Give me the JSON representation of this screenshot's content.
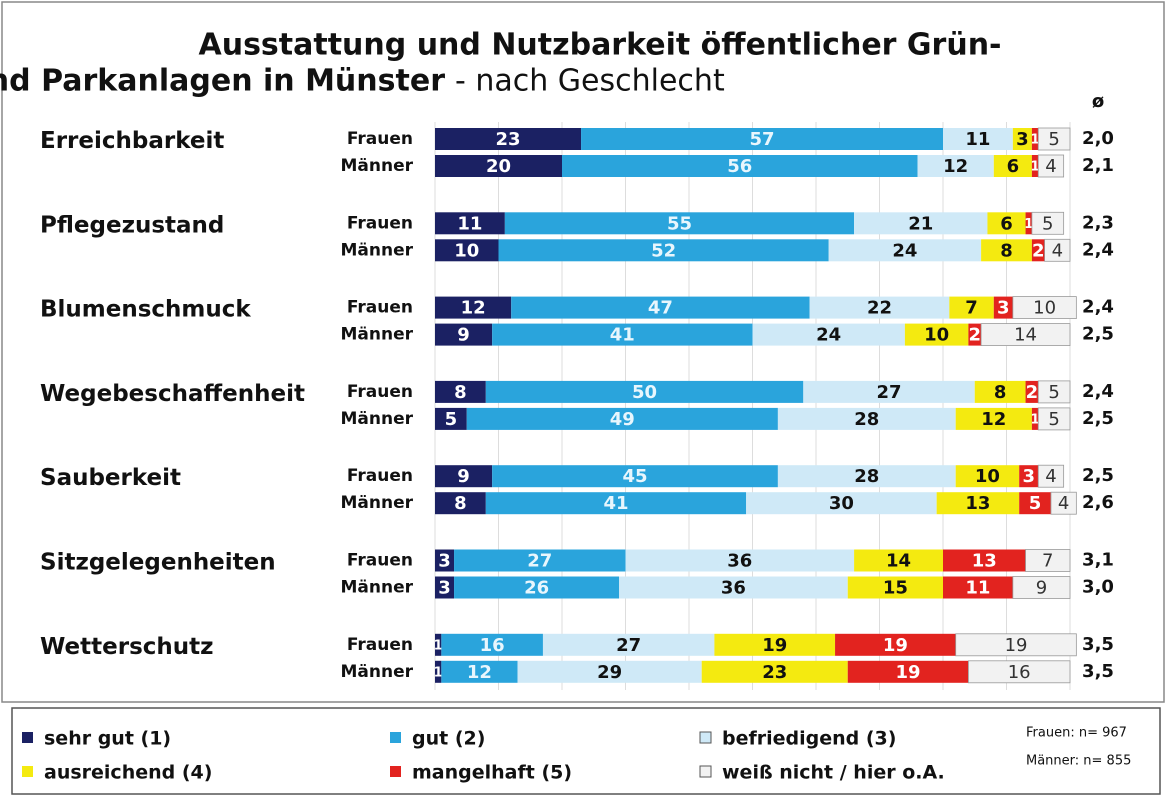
{
  "chart_data": {
    "type": "stacked_bar_horizontal",
    "title": [
      "Ausstattung und Nutzbarkeit öffentlicher Grün-",
      "und Parkanlagen in Münster"
    ],
    "subtitle": "- nach Geschlecht",
    "groups": [
      "Erreichbarkeit",
      "Pflegezustand",
      "Blumenschmuck",
      "Wegebeschaffenheit",
      "Sauberkeit",
      "Sitzgelegenheiten",
      "Wetterschutz"
    ],
    "categories": [
      "Frauen",
      "Männer",
      "Frauen",
      "Männer",
      "Frauen",
      "Männer",
      "Frauen",
      "Männer",
      "Frauen",
      "Männer",
      "Frauen",
      "Männer",
      "Frauen",
      "Männer"
    ],
    "average_header": "ø",
    "averages": [
      "2,0",
      "2,1",
      "2,3",
      "2,4",
      "2,4",
      "2,5",
      "2,4",
      "2,5",
      "2,5",
      "2,6",
      "3,1",
      "3,0",
      "3,5",
      "3,5"
    ],
    "series": [
      {
        "name": "sehr gut (1)",
        "color": "#1b2163",
        "values": [
          23,
          20,
          11,
          10,
          12,
          9,
          8,
          5,
          9,
          8,
          3,
          3,
          1,
          1
        ]
      },
      {
        "name": "gut (2)",
        "color": "#2aa4dc",
        "values": [
          57,
          56,
          55,
          52,
          47,
          41,
          50,
          49,
          45,
          41,
          27,
          26,
          16,
          12
        ]
      },
      {
        "name": "befriedigend (3)",
        "color": "#cfe9f7",
        "values": [
          11,
          12,
          21,
          24,
          22,
          24,
          27,
          28,
          28,
          30,
          36,
          36,
          27,
          29
        ]
      },
      {
        "name": "ausreichend (4)",
        "color": "#f4ea10",
        "values": [
          3,
          6,
          6,
          8,
          7,
          10,
          8,
          12,
          10,
          13,
          14,
          15,
          19,
          23
        ]
      },
      {
        "name": "mangelhaft (5)",
        "color": "#e2231f",
        "values": [
          1,
          1,
          1,
          2,
          3,
          2,
          2,
          1,
          3,
          5,
          13,
          11,
          19,
          19
        ]
      },
      {
        "name": "weiß nicht / hier o.A.",
        "color": "#f2f2f2",
        "values": [
          5,
          4,
          5,
          4,
          10,
          14,
          5,
          5,
          4,
          4,
          7,
          9,
          19,
          16
        ]
      }
    ],
    "xlim": [
      0,
      100
    ],
    "xticks": [
      0,
      10,
      20,
      30,
      40,
      50,
      60,
      70,
      80,
      90,
      100
    ],
    "grid": true,
    "notes": [
      "Frauen: n= 967",
      "Männer: n= 855"
    ]
  }
}
